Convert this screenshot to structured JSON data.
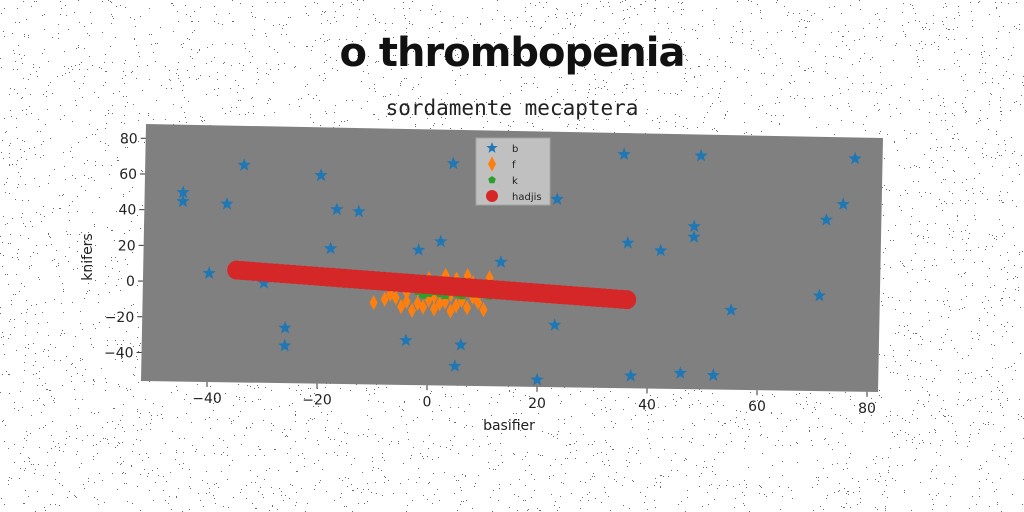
{
  "header": {
    "title": "o thrombopenia",
    "subtitle": "sordamente mecaptera"
  },
  "colors": {
    "plot_bg": "#808080",
    "page_bg": "#ffffff",
    "b": "#1f77b4",
    "f": "#ff7f0e",
    "k": "#2ca02c",
    "hadjis": "#d62728"
  },
  "chart_data": {
    "type": "scatter",
    "xlabel": "basifier",
    "ylabel": "knifers",
    "xlim": [
      -52,
      82
    ],
    "ylim": [
      -56,
      88
    ],
    "xticks": [
      -40,
      -20,
      0,
      20,
      40,
      60,
      80
    ],
    "yticks": [
      -40,
      -20,
      0,
      20,
      40,
      60,
      80
    ],
    "xtick_labels": [
      "−40",
      "−20",
      "0",
      "20",
      "40",
      "60",
      "80"
    ],
    "ytick_labels": [
      "−40",
      "−20",
      "0",
      "20",
      "40",
      "60",
      "80"
    ],
    "grid": false,
    "legend_position": "top-center",
    "legend": [
      "b",
      "f",
      "k",
      "hadjis"
    ],
    "series": [
      {
        "name": "b",
        "marker": "star",
        "points": [
          [
            -45,
            50
          ],
          [
            -45,
            45
          ],
          [
            -34,
            66
          ],
          [
            -37,
            44
          ],
          [
            -40,
            5
          ],
          [
            -30,
            0
          ],
          [
            -26,
            -25
          ],
          [
            -26,
            -35
          ],
          [
            -20,
            61
          ],
          [
            -17,
            42
          ],
          [
            -18,
            20
          ],
          [
            -13,
            41
          ],
          [
            -4,
            -31
          ],
          [
            -2,
            20
          ],
          [
            2,
            25
          ],
          [
            4,
            69
          ],
          [
            5,
            -45
          ],
          [
            6,
            -33
          ],
          [
            13,
            14
          ],
          [
            20,
            -52
          ],
          [
            23,
            50
          ],
          [
            23,
            -21
          ],
          [
            35,
            76
          ],
          [
            36,
            26
          ],
          [
            37,
            -49
          ],
          [
            42,
            22
          ],
          [
            46,
            -47
          ],
          [
            48,
            36
          ],
          [
            48,
            30
          ],
          [
            49,
            76
          ],
          [
            52,
            -48
          ],
          [
            55,
            -11
          ],
          [
            71,
            -2
          ],
          [
            72,
            41
          ],
          [
            75,
            50
          ],
          [
            77,
            76
          ]
        ]
      },
      {
        "name": "f",
        "marker": "diamond",
        "points": [
          [
            -10,
            -10
          ],
          [
            -8,
            -8
          ],
          [
            -7,
            -5
          ],
          [
            -5,
            -12
          ],
          [
            -4,
            -9
          ],
          [
            -3,
            -14
          ],
          [
            -2,
            -10
          ],
          [
            -1,
            -12
          ],
          [
            0,
            -8
          ],
          [
            1,
            -13
          ],
          [
            2,
            -10
          ],
          [
            3,
            -9
          ],
          [
            4,
            -14
          ],
          [
            5,
            -11
          ],
          [
            6,
            -8
          ],
          [
            7,
            -12
          ],
          [
            8,
            -6
          ],
          [
            9,
            -3
          ],
          [
            10,
            -13
          ],
          [
            11,
            5
          ],
          [
            -2,
            -2
          ],
          [
            0,
            4
          ],
          [
            2,
            2
          ],
          [
            3,
            6
          ],
          [
            5,
            4
          ],
          [
            7,
            6
          ],
          [
            4,
            -5
          ],
          [
            6,
            -3
          ],
          [
            8,
            2
          ],
          [
            1,
            -6
          ],
          [
            -4,
            -4
          ],
          [
            -6,
            -7
          ],
          [
            9,
            -9
          ],
          [
            -1,
            0
          ],
          [
            3,
            -2
          ]
        ]
      },
      {
        "name": "k",
        "marker": "pentagon",
        "points": [
          [
            -2,
            -3
          ],
          [
            -1,
            -5
          ],
          [
            0,
            -4
          ],
          [
            1,
            -3
          ],
          [
            2,
            -4
          ],
          [
            3,
            -5
          ],
          [
            4,
            -2
          ],
          [
            5,
            -4
          ],
          [
            6,
            -5
          ],
          [
            7,
            -3
          ],
          [
            8,
            -4
          ],
          [
            9,
            -2
          ],
          [
            10,
            -3
          ],
          [
            11,
            -5
          ],
          [
            3,
            -1
          ],
          [
            6,
            -1
          ],
          [
            0,
            -2
          ]
        ]
      },
      {
        "name": "hadjis",
        "marker": "circle",
        "line_from": [
          -35,
          7
        ],
        "line_to": [
          36,
          -6
        ],
        "count": 70
      }
    ]
  }
}
